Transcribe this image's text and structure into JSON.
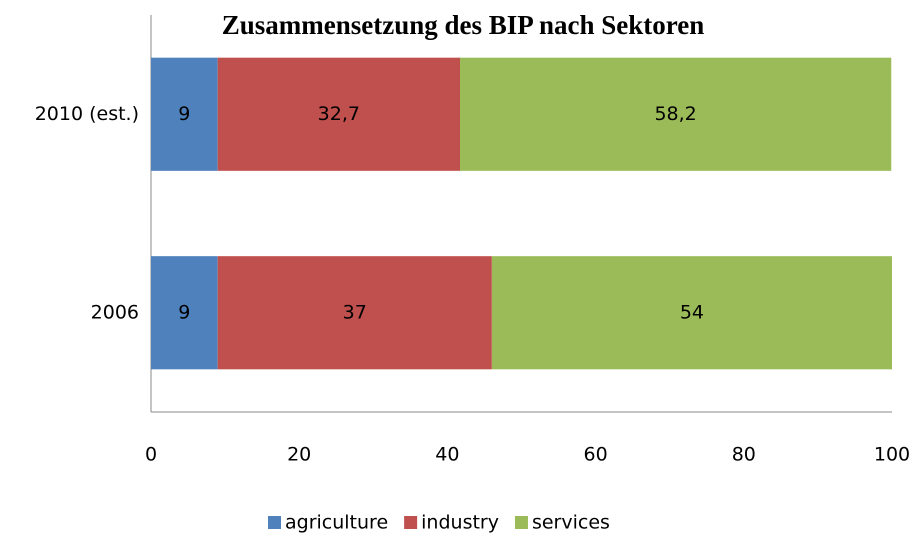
{
  "chart_data": {
    "type": "stacked_barh",
    "title": "Zusammensetzung des BIP nach Sektoren",
    "categories": [
      "2010 (est.)",
      "2006"
    ],
    "series": [
      {
        "name": "agriculture",
        "color": "#4f81bd",
        "values": [
          9,
          9
        ]
      },
      {
        "name": "industry",
        "color": "#c0504d",
        "values": [
          32.7,
          37
        ],
        "value_labels": [
          "32,7",
          "37"
        ]
      },
      {
        "name": "services",
        "color": "#9bbb59",
        "values": [
          58.2,
          54
        ],
        "value_labels": [
          "58,2",
          "54"
        ]
      }
    ],
    "xlim": [
      0,
      100
    ],
    "xticks": [
      0,
      20,
      40,
      60,
      80,
      100
    ],
    "legend": "bottom"
  }
}
